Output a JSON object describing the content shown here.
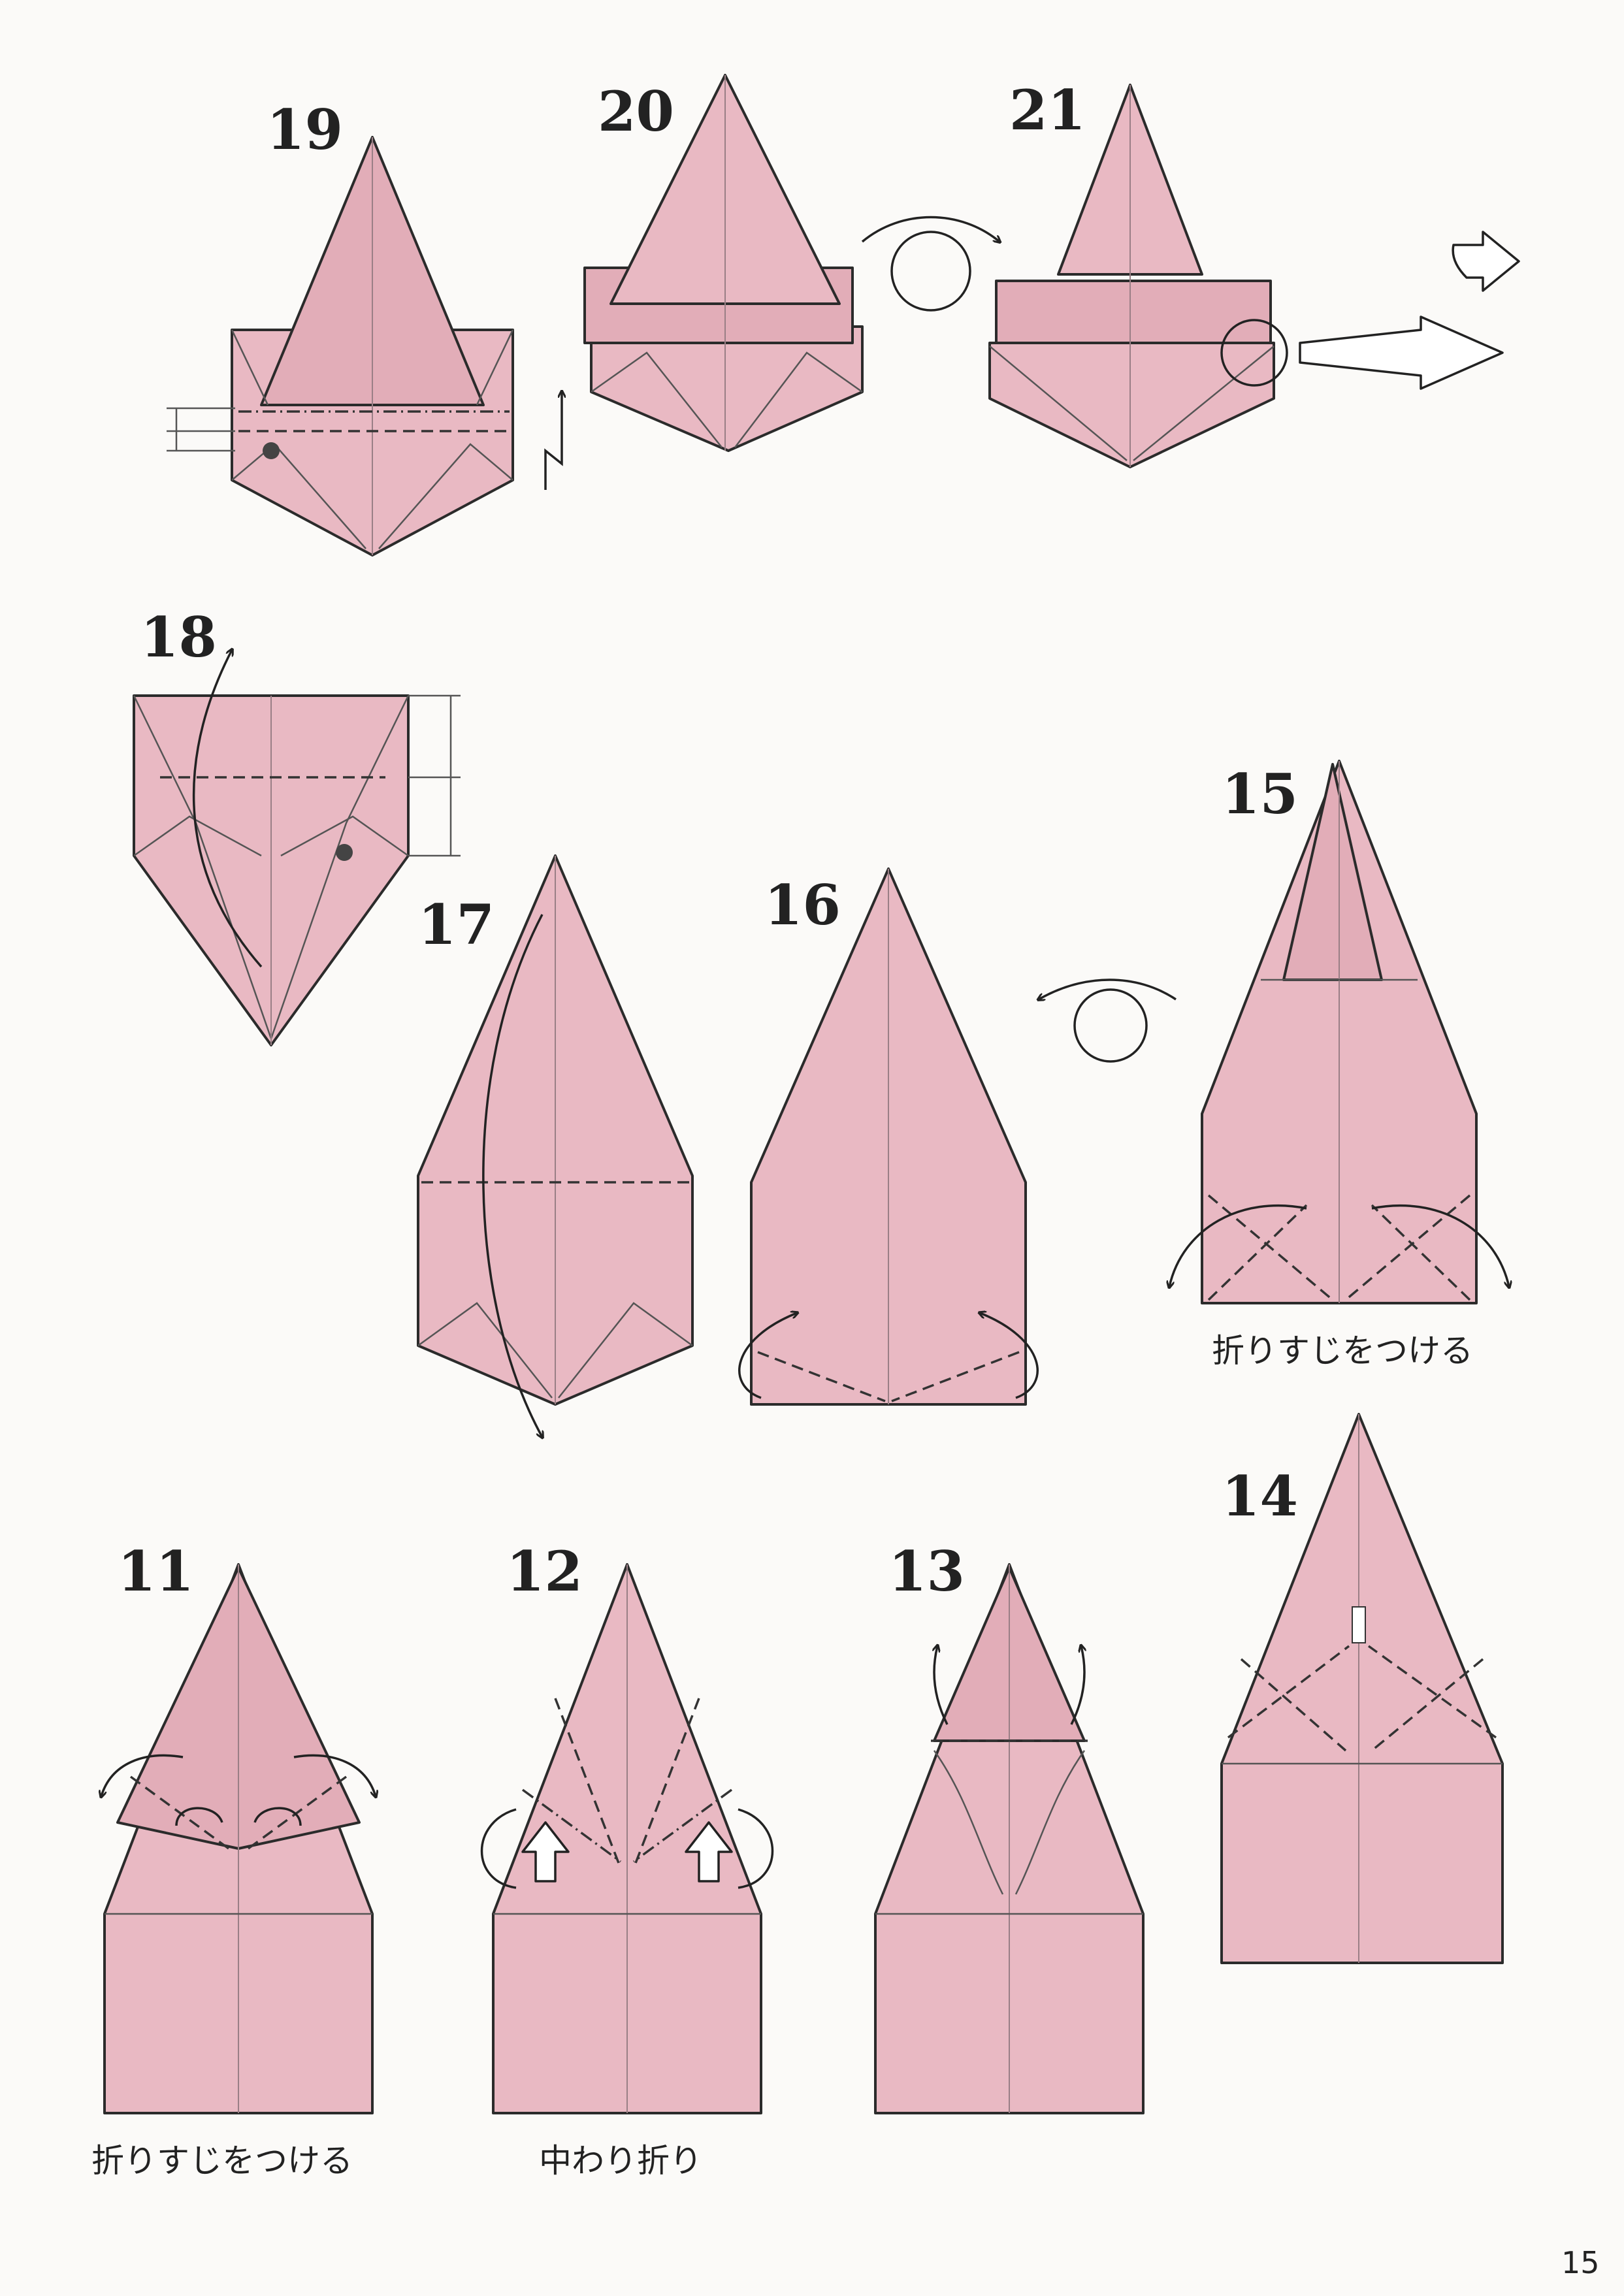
{
  "page": {
    "number": "15"
  },
  "steps": {
    "s11": {
      "number": "11",
      "caption": "折りすじをつける"
    },
    "s12": {
      "number": "12",
      "caption": "中わり折り"
    },
    "s13": {
      "number": "13"
    },
    "s14": {
      "number": "14"
    },
    "s15": {
      "number": "15",
      "caption": "折りすじをつける"
    },
    "s16": {
      "number": "16"
    },
    "s17": {
      "number": "17"
    },
    "s18": {
      "number": "18"
    },
    "s19": {
      "number": "19"
    },
    "s20": {
      "number": "20"
    },
    "s21": {
      "number": "21"
    }
  },
  "colors": {
    "paper": "#e9b9c3",
    "line": "#2b2b2b",
    "background": "#fbfaf8"
  },
  "symbols": [
    "turn-over-symbol",
    "next-view-symbol",
    "zoom-arrow-symbol",
    "pleat-symbol"
  ]
}
